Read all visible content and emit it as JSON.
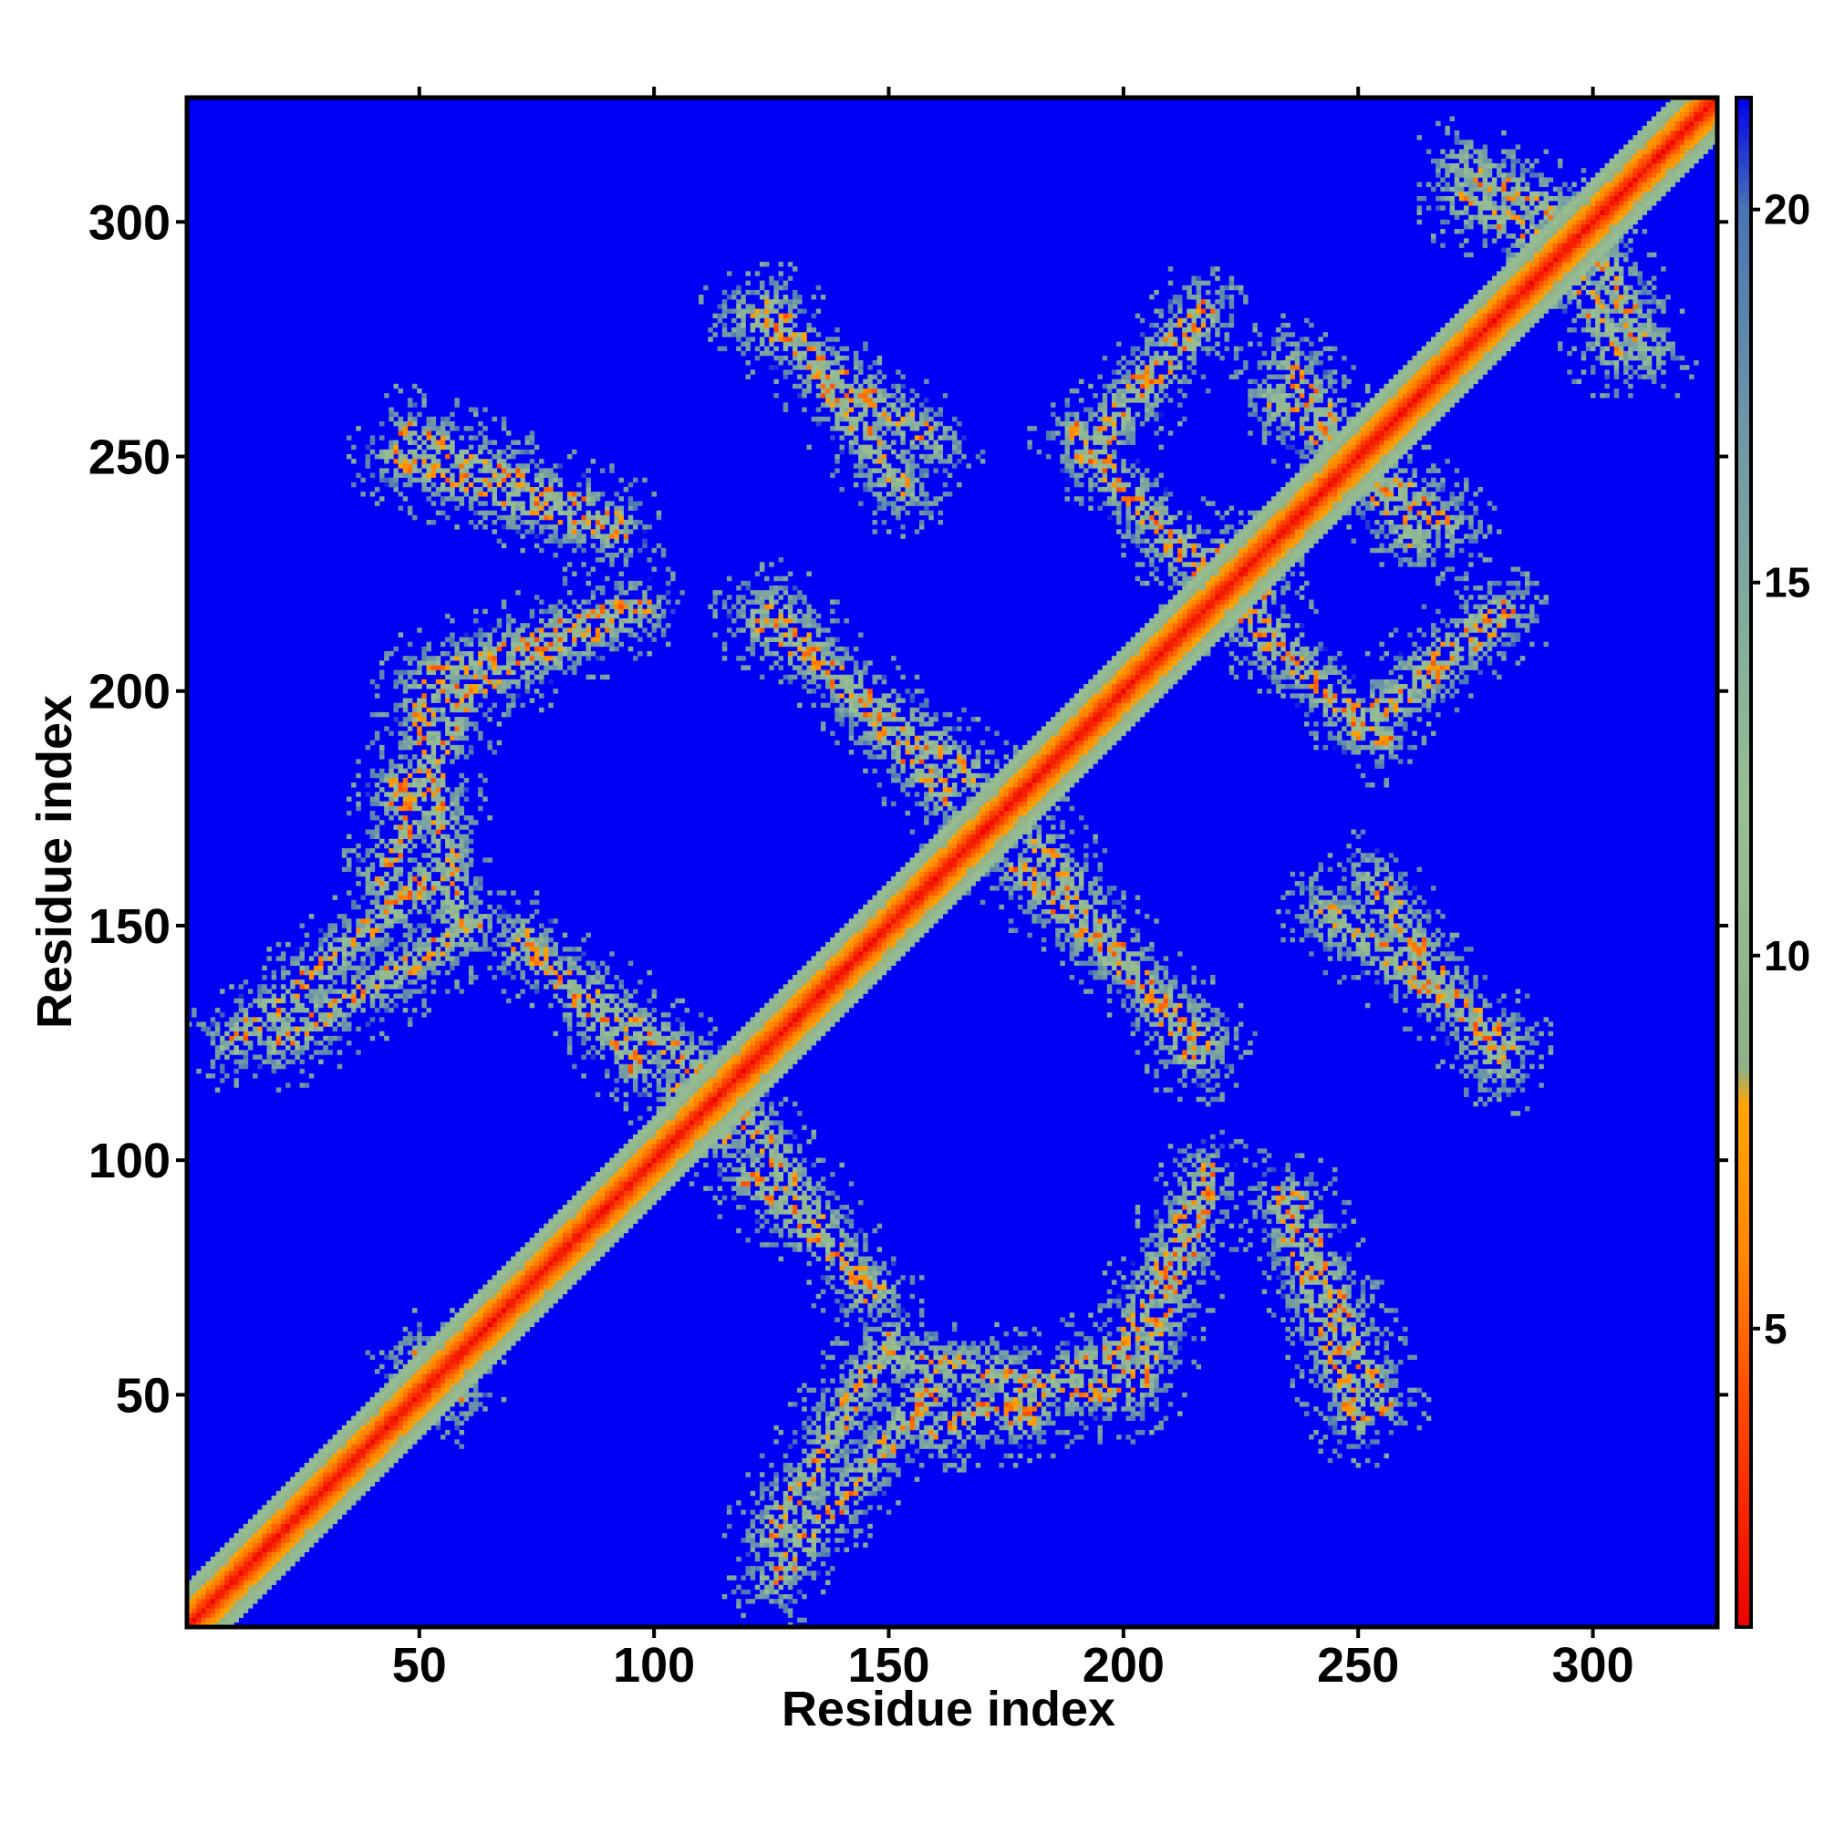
{
  "chart_data": {
    "type": "heatmap",
    "title": "",
    "xlabel": "Residue index",
    "ylabel": "Residue index",
    "xlim": [
      0.5,
      326.5
    ],
    "ylim": [
      0.5,
      326.5
    ],
    "n_residues": 326,
    "x_ticks": [
      50,
      100,
      150,
      200,
      250,
      300
    ],
    "y_ticks": [
      50,
      100,
      150,
      200,
      250,
      300
    ],
    "colorbar": {
      "range": [
        1,
        21.5
      ],
      "ticks": [
        5,
        10,
        15,
        20
      ],
      "stops": [
        {
          "value": 1,
          "color": "#ee0000"
        },
        {
          "value": 4,
          "color": "#ff4a00"
        },
        {
          "value": 6,
          "color": "#ff8800"
        },
        {
          "value": 8,
          "color": "#ffa500"
        },
        {
          "value": 8.5,
          "color": "#8fb08a"
        },
        {
          "value": 12,
          "color": "#98bf92"
        },
        {
          "value": 17,
          "color": "#6f98a6"
        },
        {
          "value": 20,
          "color": "#4a74b4"
        },
        {
          "value": 21.5,
          "color": "#0000ee"
        }
      ]
    },
    "background_color": "#0000f5",
    "contact_bands": [
      {
        "i0": 10,
        "j0": 125,
        "i1": 52,
        "j1": 160
      },
      {
        "i0": 42,
        "j0": 160,
        "i1": 60,
        "j1": 200
      },
      {
        "i0": 52,
        "j0": 203,
        "i1": 95,
        "j1": 218
      },
      {
        "i0": 45,
        "j0": 250,
        "i1": 92,
        "j1": 233
      },
      {
        "i0": 72,
        "j0": 145,
        "i1": 112,
        "j1": 118
      },
      {
        "i0": 122,
        "j0": 215,
        "i1": 168,
        "j1": 182
      },
      {
        "i0": 120,
        "j0": 280,
        "i1": 160,
        "j1": 253
      },
      {
        "i0": 178,
        "j0": 162,
        "i1": 218,
        "j1": 125
      },
      {
        "i0": 120,
        "j0": 97,
        "i1": 148,
        "j1": 72
      },
      {
        "i0": 125,
        "j0": 20,
        "i1": 150,
        "j1": 62
      },
      {
        "i0": 152,
        "j0": 58,
        "i1": 200,
        "j1": 50
      },
      {
        "i0": 198,
        "j0": 55,
        "i1": 218,
        "j1": 98
      },
      {
        "i0": 192,
        "j0": 250,
        "i1": 218,
        "j1": 280
      },
      {
        "i0": 195,
        "j0": 248,
        "i1": 222,
        "j1": 222
      },
      {
        "i0": 226,
        "j0": 215,
        "i1": 255,
        "j1": 190
      },
      {
        "i0": 255,
        "j0": 195,
        "i1": 282,
        "j1": 217
      },
      {
        "i0": 236,
        "j0": 92,
        "i1": 255,
        "j1": 48
      },
      {
        "i0": 243,
        "j0": 153,
        "i1": 282,
        "j1": 125
      },
      {
        "i0": 232,
        "j0": 262,
        "i1": 270,
        "j1": 235
      },
      {
        "i0": 272,
        "j0": 305,
        "i1": 290,
        "j1": 296
      },
      {
        "i0": 302,
        "j0": 292,
        "i1": 312,
        "j1": 272
      }
    ],
    "contact_hubs": [
      {
        "i": 108,
        "j": 112
      },
      {
        "i": 172,
        "j": 170
      },
      {
        "i": 48,
        "j": 178
      },
      {
        "i": 55,
        "j": 52
      },
      {
        "i": 222,
        "j": 226
      }
    ]
  }
}
